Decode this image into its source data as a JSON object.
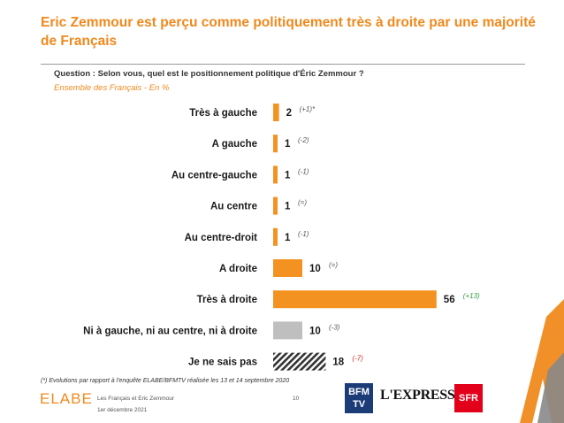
{
  "header": {
    "title": "Eric Zemmour est perçu comme politiquement très à droite par une majorité de Français",
    "question": "Question : Selon vous, quel est le positionnement politique d'Éric Zemmour ?",
    "population": "Ensemble des Français - En  %"
  },
  "chart_data": {
    "type": "bar",
    "orientation": "horizontal",
    "categories": [
      "Très à gauche",
      "A gauche",
      "Au centre-gauche",
      "Au centre",
      "Au centre-droit",
      "A droite",
      "Très à droite",
      "Ni à gauche, ni au centre, ni à droite",
      "Je ne sais pas"
    ],
    "values": [
      2,
      1,
      1,
      1,
      1,
      10,
      56,
      10,
      18
    ],
    "evolutions": [
      "(+1)*",
      "(-2)",
      "(-1)",
      "(=)",
      "(-1)",
      "(=)",
      "(+13)",
      "(-3)",
      "(-7)"
    ],
    "bar_styles": [
      "orange",
      "orange",
      "orange",
      "orange",
      "orange",
      "orange",
      "orange",
      "grey",
      "hatched"
    ],
    "evolution_colors": [
      "#555555",
      "#555555",
      "#555555",
      "#555555",
      "#555555",
      "#555555",
      "#2e9e3e",
      "#555555",
      "#d0312d"
    ],
    "colors": {
      "orange": "#f39221",
      "grey": "#bfbfbf",
      "hatched": "#333333"
    }
  },
  "footer": {
    "footnote": "(*) Evolutions par rapport à l'enquête ELABE/BFMTV réalisée les 13 et 14 septembre 2020",
    "source": "Les Français et Eric Zemmour",
    "date": "1er décembre 2021",
    "page_number": "10",
    "logos": {
      "elabe": "ELABE",
      "bfm_line1": "BFM",
      "bfm_line2": "TV",
      "express": "L'EXPRESS",
      "sfr": "SFR"
    }
  }
}
